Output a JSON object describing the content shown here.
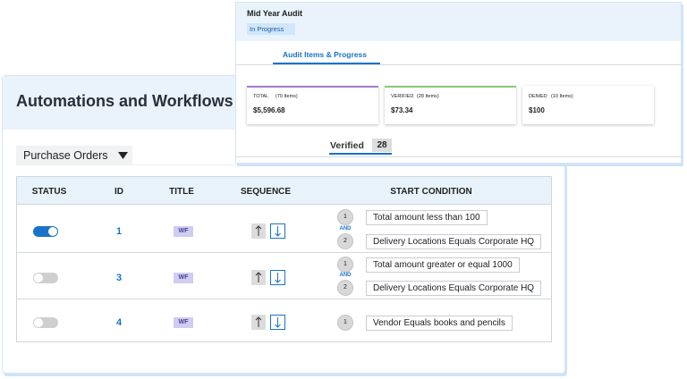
{
  "workflows": {
    "title": "Automations and Workflows",
    "dropdown": "Purchase Orders",
    "table": {
      "headers": [
        "STATUS",
        "ID",
        "TITLE",
        "SEQUENCE",
        "START CONDITION"
      ],
      "rows": [
        {
          "enabled": true,
          "id": 1,
          "title": "WF",
          "joiner": "AND",
          "conditions": [
            {
              "step": 1,
              "text": "Total amount less than 100"
            },
            {
              "step": 2,
              "text": "Delivery Locations Equals Corporate HQ"
            }
          ]
        },
        {
          "enabled": false,
          "id": 3,
          "title": "WF",
          "joiner": "AND",
          "conditions": [
            {
              "step": 1,
              "text": "Total amount greater or equal 1000"
            },
            {
              "step": 2,
              "text": "Delivery Locations Equals Corporate HQ"
            }
          ]
        },
        {
          "enabled": false,
          "id": 4,
          "title": "WF",
          "conditions": [
            {
              "step": 1,
              "text": "Vendor Equals books and pencils"
            }
          ]
        }
      ]
    }
  },
  "audit": {
    "title": "Mid Year Audit",
    "status": "In Progress",
    "tab": "Audit Items & Progress",
    "stats": [
      {
        "label": "TOTAL",
        "count": "(70 Items)",
        "value": "$5,596.68",
        "color": "#a77bd0"
      },
      {
        "label": "VERIFIED",
        "count": "(28 Items)",
        "value": "$73.34",
        "color": "#8cc97a"
      },
      {
        "label": "DENIED",
        "count": "(10 Items)",
        "value": "$100",
        "color": "#ffffff"
      }
    ],
    "filter": {
      "label": "Verified",
      "count": 28
    }
  }
}
